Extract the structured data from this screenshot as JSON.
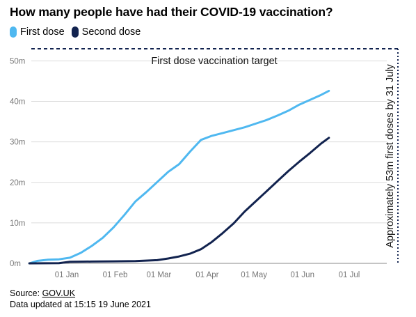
{
  "title": "How many people have had their COVID-19 vaccination?",
  "legend": [
    {
      "label": "First dose",
      "color": "#4fb8f0"
    },
    {
      "label": "Second dose",
      "color": "#12234f"
    }
  ],
  "source": {
    "prefix": "Source: ",
    "link": "GOV.UK",
    "updated": "Data updated at 15:15 19 June 2021"
  },
  "chart_data": {
    "type": "line",
    "title": "How many people have had their COVID-19 vaccination?",
    "xlabel": "",
    "ylabel": "",
    "x_ticks": [
      "01 Jan",
      "01 Feb",
      "01 Mar",
      "01 Apr",
      "01 May",
      "01 Jun",
      "01 Jul"
    ],
    "y_ticks": [
      "0m",
      "10m",
      "20m",
      "30m",
      "40m",
      "50m"
    ],
    "ylim": [
      0,
      53
    ],
    "xlim": [
      "2020-12-08",
      "2021-07-14"
    ],
    "grid": true,
    "legend_position": "top-left",
    "series": [
      {
        "name": "First dose",
        "color": "#4fb8f0",
        "points": [
          [
            "2020-12-08",
            0
          ],
          [
            "2020-12-13",
            0.6
          ],
          [
            "2020-12-20",
            0.9
          ],
          [
            "2020-12-27",
            1.0
          ],
          [
            "2021-01-03",
            1.4
          ],
          [
            "2021-01-10",
            2.6
          ],
          [
            "2021-01-17",
            4.3
          ],
          [
            "2021-01-24",
            6.3
          ],
          [
            "2021-01-31",
            8.9
          ],
          [
            "2021-02-07",
            12.0
          ],
          [
            "2021-02-14",
            15.3
          ],
          [
            "2021-02-21",
            17.6
          ],
          [
            "2021-02-28",
            20.1
          ],
          [
            "2021-03-07",
            22.6
          ],
          [
            "2021-03-14",
            24.5
          ],
          [
            "2021-03-21",
            27.6
          ],
          [
            "2021-03-28",
            30.5
          ],
          [
            "2021-04-04",
            31.5
          ],
          [
            "2021-04-11",
            32.2
          ],
          [
            "2021-04-18",
            32.9
          ],
          [
            "2021-04-25",
            33.6
          ],
          [
            "2021-05-02",
            34.5
          ],
          [
            "2021-05-09",
            35.4
          ],
          [
            "2021-05-16",
            36.5
          ],
          [
            "2021-05-23",
            37.7
          ],
          [
            "2021-05-30",
            39.2
          ],
          [
            "2021-06-06",
            40.4
          ],
          [
            "2021-06-13",
            41.6
          ],
          [
            "2021-06-18",
            42.6
          ]
        ]
      },
      {
        "name": "Second dose",
        "color": "#12234f",
        "points": [
          [
            "2020-12-08",
            0
          ],
          [
            "2020-12-27",
            0.05
          ],
          [
            "2021-01-03",
            0.4
          ],
          [
            "2021-01-17",
            0.45
          ],
          [
            "2021-01-31",
            0.5
          ],
          [
            "2021-02-14",
            0.55
          ],
          [
            "2021-02-28",
            0.8
          ],
          [
            "2021-03-07",
            1.2
          ],
          [
            "2021-03-14",
            1.7
          ],
          [
            "2021-03-21",
            2.4
          ],
          [
            "2021-03-28",
            3.5
          ],
          [
            "2021-04-04",
            5.3
          ],
          [
            "2021-04-11",
            7.5
          ],
          [
            "2021-04-18",
            9.9
          ],
          [
            "2021-04-25",
            12.8
          ],
          [
            "2021-05-02",
            15.3
          ],
          [
            "2021-05-09",
            17.8
          ],
          [
            "2021-05-16",
            20.3
          ],
          [
            "2021-05-23",
            22.8
          ],
          [
            "2021-05-30",
            25.1
          ],
          [
            "2021-06-06",
            27.3
          ],
          [
            "2021-06-13",
            29.6
          ],
          [
            "2021-06-18",
            31.0
          ]
        ]
      }
    ],
    "target": {
      "value": 53,
      "label": "First dose vaccination target",
      "vertical_date": "2021-07-31",
      "vertical_label": "Approximately 53m first doses by 31 July"
    }
  }
}
